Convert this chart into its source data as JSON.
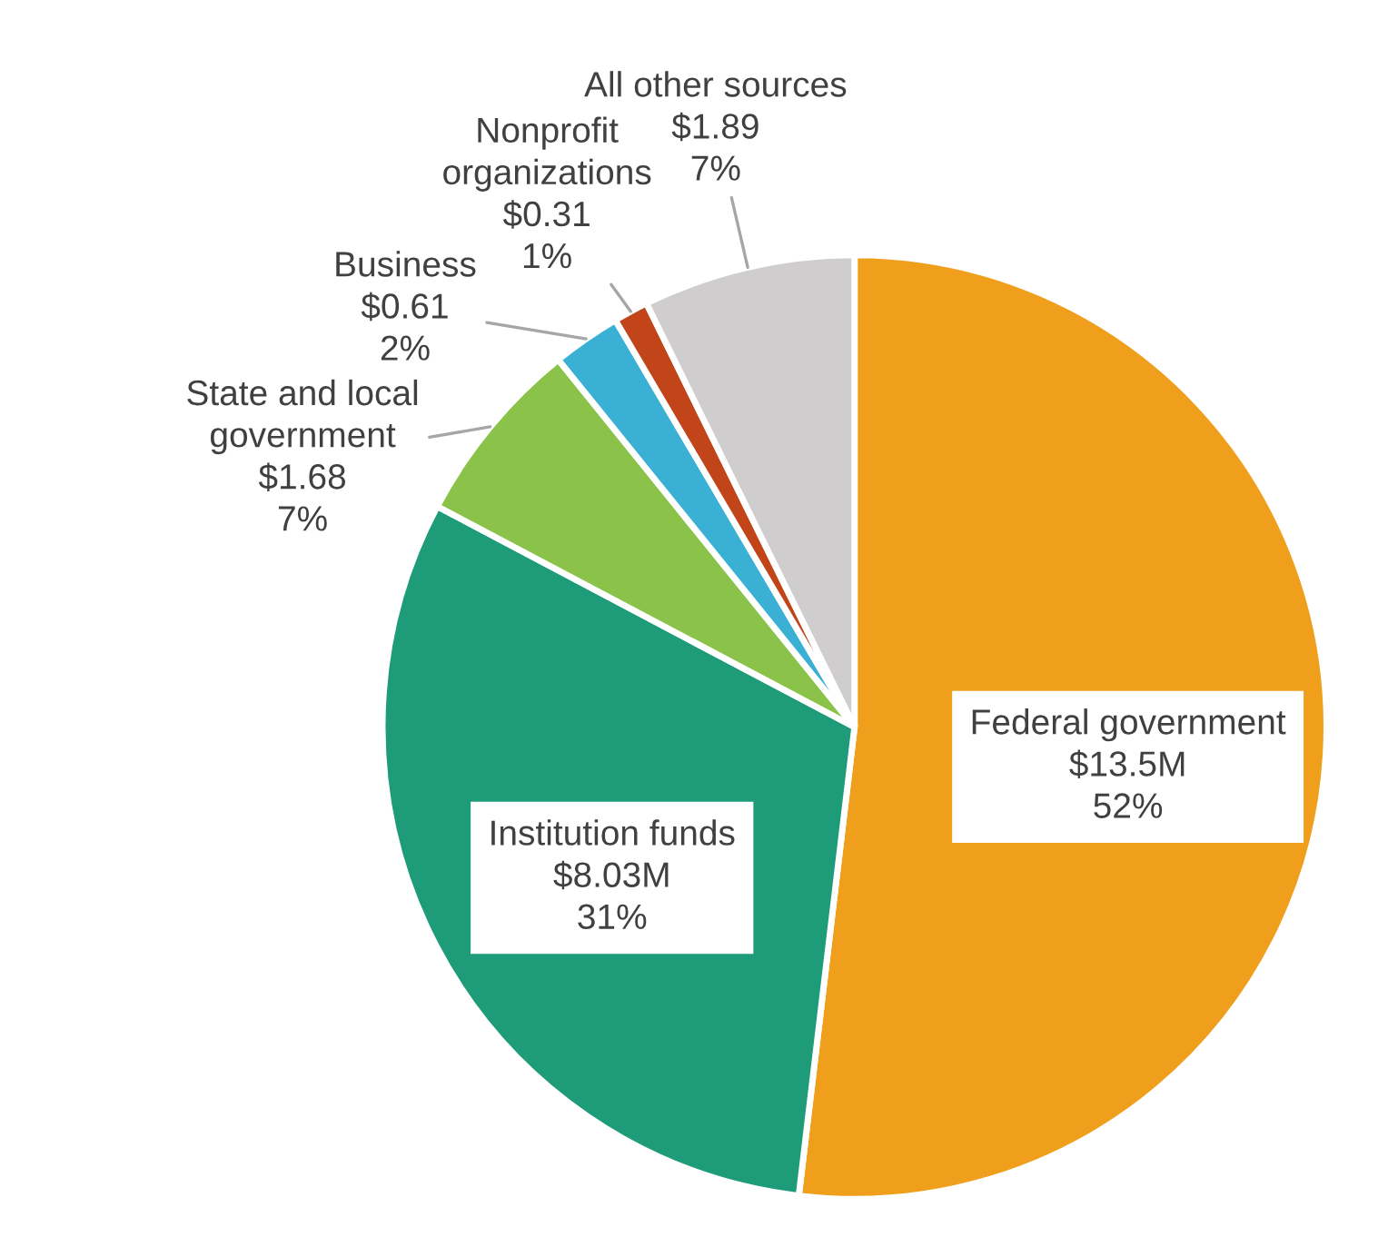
{
  "chart_data": {
    "type": "pie",
    "categories": [
      "Federal government",
      "Institution funds",
      "State and local\ngovernment",
      "Business",
      "Nonprofit\norganizations",
      "All other sources"
    ],
    "values": [
      13.5,
      8.03,
      1.68,
      0.61,
      0.31,
      1.89
    ],
    "value_labels": [
      "$13.5M",
      "$8.03M",
      "$1.68",
      "$0.61",
      "$0.31",
      "$1.89"
    ],
    "annotations": [
      "52%",
      "31%",
      "7%",
      "2%",
      "1%",
      "7%"
    ],
    "colors": [
      "#f09f1c",
      "#1e9b78",
      "#8bc34a",
      "#3ab0d4",
      "#c2451a",
      "#d0cdcf"
    ],
    "legend": false
  }
}
